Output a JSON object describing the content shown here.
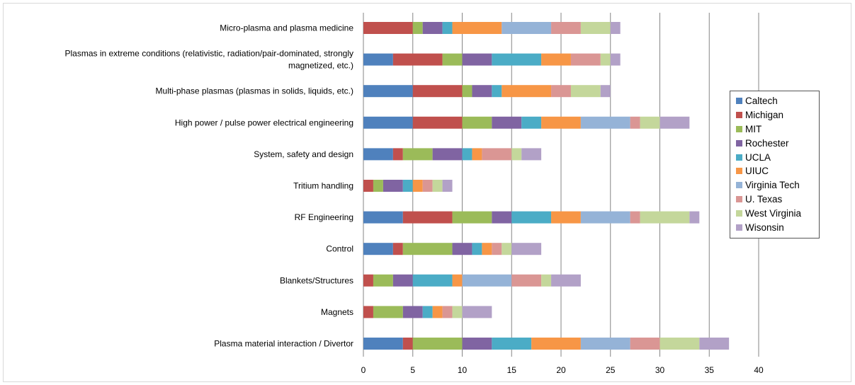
{
  "chart_data": {
    "type": "bar",
    "orientation": "horizontal",
    "stacked": true,
    "categories": [
      "Micro-plasma and plasma medicine",
      [
        "Plasmas in extreme conditions (relativistic, radiation/pair-dominated, strongly",
        "magnetized, etc.)"
      ],
      "Multi-phase plasmas (plasmas in solids, liquids, etc.)",
      "High power / pulse power electrical engineering",
      "System, safety and design",
      "Tritium handling",
      "RF Engineering",
      "Control",
      "Blankets/Structures",
      "Magnets",
      "Plasma material interaction / Divertor"
    ],
    "series": [
      {
        "name": "Caltech",
        "color": "#4f81bd",
        "values": [
          0,
          3,
          5,
          5,
          3,
          0,
          4,
          3,
          0,
          0,
          4
        ]
      },
      {
        "name": "Michigan",
        "color": "#c0504d",
        "values": [
          5,
          5,
          5,
          5,
          1,
          1,
          5,
          1,
          1,
          1,
          1
        ]
      },
      {
        "name": "MIT",
        "color": "#9bbb59",
        "values": [
          1,
          2,
          1,
          3,
          3,
          1,
          4,
          5,
          2,
          3,
          5
        ]
      },
      {
        "name": "Rochester",
        "color": "#8064a2",
        "values": [
          2,
          3,
          2,
          3,
          3,
          2,
          2,
          2,
          2,
          2,
          3
        ]
      },
      {
        "name": "UCLA",
        "color": "#4bacc6",
        "values": [
          1,
          5,
          1,
          2,
          1,
          1,
          4,
          1,
          4,
          1,
          4
        ]
      },
      {
        "name": "UIUC",
        "color": "#f79646",
        "values": [
          5,
          3,
          5,
          4,
          1,
          1,
          3,
          1,
          1,
          1,
          5
        ]
      },
      {
        "name": "Virginia Tech",
        "color": "#95b3d7",
        "values": [
          5,
          0,
          0,
          5,
          0,
          0,
          5,
          0,
          5,
          0,
          5
        ]
      },
      {
        "name": "U. Texas",
        "color": "#da9694",
        "values": [
          3,
          3,
          2,
          1,
          3,
          1,
          1,
          1,
          3,
          1,
          3
        ]
      },
      {
        "name": "West Virginia",
        "color": "#c4d79b",
        "values": [
          3,
          1,
          3,
          2,
          1,
          1,
          5,
          1,
          1,
          1,
          4
        ]
      },
      {
        "name": "Wisonsin",
        "color": "#b2a1c7",
        "values": [
          1,
          1,
          1,
          3,
          2,
          1,
          1,
          3,
          3,
          3,
          3
        ]
      }
    ],
    "xlim": [
      0,
      40
    ],
    "xticks": [
      0,
      5,
      10,
      15,
      20,
      25,
      30,
      35,
      40
    ],
    "grid": "vertical",
    "legend_position": "right"
  }
}
